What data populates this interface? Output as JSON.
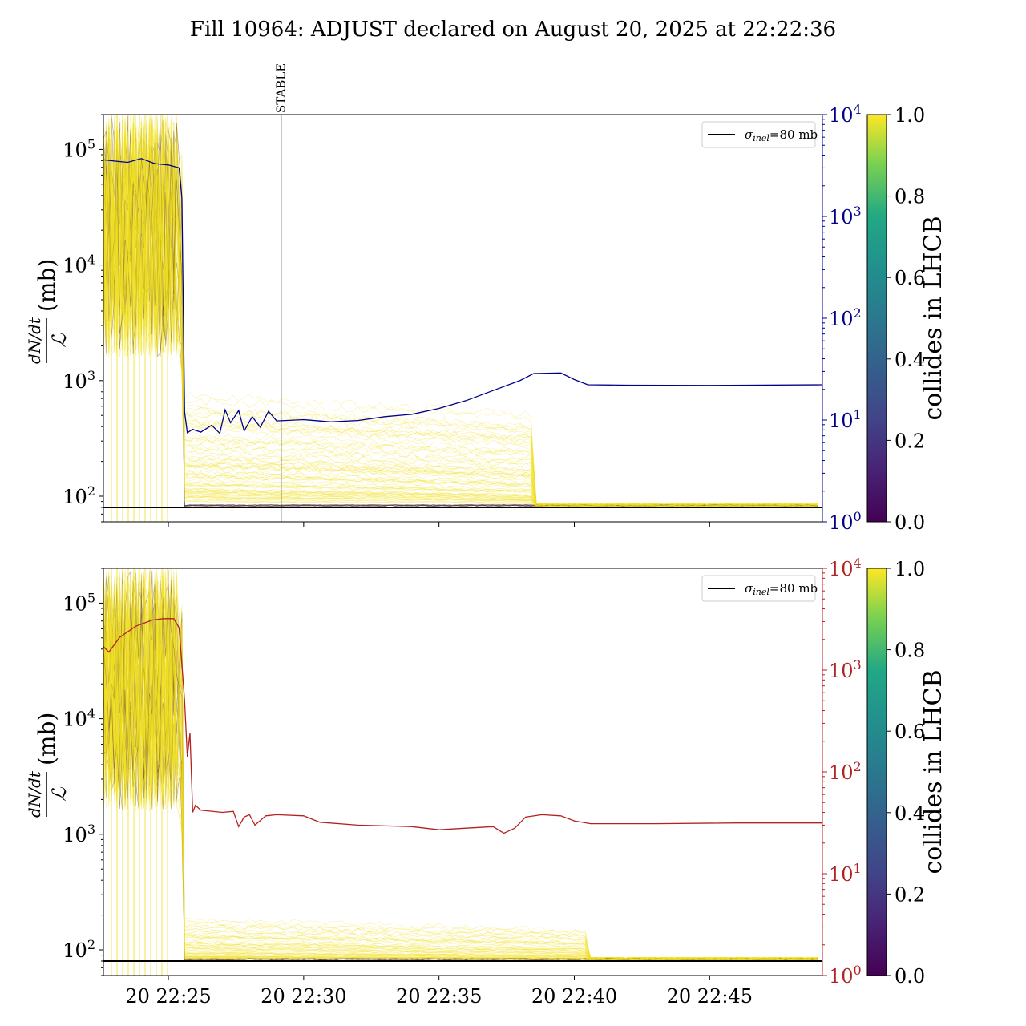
{
  "title": "Fill 10964: ADJUST declared on August 20, 2025 at 22:22:36",
  "chart_data": [
    {
      "type": "line",
      "panel": "top",
      "ylabel": {
        "numerator": "dN/dt",
        "denominator": "ℒ",
        "unit": "(mb)"
      },
      "yscale": "log",
      "ylim": [
        60,
        200000
      ],
      "left_ticks": [
        {
          "value": 100,
          "base": "10",
          "exp": "2"
        },
        {
          "value": 1000,
          "base": "10",
          "exp": "3"
        },
        {
          "value": 10000,
          "base": "10",
          "exp": "4"
        },
        {
          "value": 100000,
          "base": "10",
          "exp": "5"
        }
      ],
      "right_axis": {
        "scale": "log",
        "ylim": [
          1,
          10000
        ],
        "color": "#00008b",
        "ticks": [
          {
            "value": 1,
            "base": "10",
            "exp": "0"
          },
          {
            "value": 10,
            "base": "10",
            "exp": "1"
          },
          {
            "value": 100,
            "base": "10",
            "exp": "2"
          },
          {
            "value": 1000,
            "base": "10",
            "exp": "3"
          },
          {
            "value": 10000,
            "base": "10",
            "exp": "4"
          }
        ]
      },
      "xlim": [
        "2025-08-20 22:22:36",
        "2025-08-20 22:49:10"
      ],
      "x_ticks": [
        {
          "value": "2025-08-20 22:25:00",
          "label": ""
        },
        {
          "value": "2025-08-20 22:30:00",
          "label": ""
        },
        {
          "value": "2025-08-20 22:35:00",
          "label": ""
        },
        {
          "value": "2025-08-20 22:40:00",
          "label": ""
        },
        {
          "value": "2025-08-20 22:45:00",
          "label": ""
        }
      ],
      "legend": {
        "entries": [
          {
            "label_symbol": "σ",
            "label_sub": "inel",
            "label_rest": "=80 mb",
            "color": "#000000"
          }
        ],
        "position": "top-right"
      },
      "reference_line": {
        "y": 80,
        "color": "#000000"
      },
      "stable_marker": {
        "x": "2025-08-20 22:29:10",
        "label": "STABLE"
      },
      "colorbar": {
        "label": "collides in LHCB",
        "min": 0.0,
        "max": 1.0,
        "ticks": [
          "0.0",
          "0.2",
          "0.4",
          "0.6",
          "0.8",
          "1.0"
        ],
        "colormap": "viridis"
      },
      "bunch_band": {
        "color": "#f0e020",
        "dark_color": "#5a3a40"
      },
      "series": [
        {
          "axis": "right",
          "color": "#00008b",
          "points": [
            [
              "2025-08-20 22:22:36",
              3600
            ],
            [
              "2025-08-20 22:23:00",
              3500
            ],
            [
              "2025-08-20 22:23:30",
              3400
            ],
            [
              "2025-08-20 22:24:00",
              3700
            ],
            [
              "2025-08-20 22:24:30",
              3300
            ],
            [
              "2025-08-20 22:25:00",
              3200
            ],
            [
              "2025-08-20 22:25:24",
              3000
            ],
            [
              "2025-08-20 22:25:30",
              1500
            ],
            [
              "2025-08-20 22:25:36",
              12
            ],
            [
              "2025-08-20 22:25:42",
              7.5
            ],
            [
              "2025-08-20 22:25:54",
              8.1
            ],
            [
              "2025-08-20 22:26:12",
              7.6
            ],
            [
              "2025-08-20 22:26:36",
              8.9
            ],
            [
              "2025-08-20 22:26:54",
              7.4
            ],
            [
              "2025-08-20 22:27:06",
              12.6
            ],
            [
              "2025-08-20 22:27:18",
              9.4
            ],
            [
              "2025-08-20 22:27:36",
              12.4
            ],
            [
              "2025-08-20 22:27:48",
              7.8
            ],
            [
              "2025-08-20 22:28:06",
              10.8
            ],
            [
              "2025-08-20 22:28:24",
              8.5
            ],
            [
              "2025-08-20 22:28:42",
              12.2
            ],
            [
              "2025-08-20 22:29:00",
              9.8
            ],
            [
              "2025-08-20 22:30:00",
              10.1
            ],
            [
              "2025-08-20 22:31:00",
              9.6
            ],
            [
              "2025-08-20 22:32:00",
              9.9
            ],
            [
              "2025-08-20 22:33:00",
              10.8
            ],
            [
              "2025-08-20 22:34:00",
              11.4
            ],
            [
              "2025-08-20 22:35:00",
              13.0
            ],
            [
              "2025-08-20 22:36:00",
              15.5
            ],
            [
              "2025-08-20 22:37:00",
              19.5
            ],
            [
              "2025-08-20 22:38:00",
              24.5
            ],
            [
              "2025-08-20 22:38:30",
              28.6
            ],
            [
              "2025-08-20 22:39:30",
              29.0
            ],
            [
              "2025-08-20 22:40:00",
              25.0
            ],
            [
              "2025-08-20 22:40:30",
              22.2
            ],
            [
              "2025-08-20 22:42:00",
              22.0
            ],
            [
              "2025-08-20 22:45:00",
              21.9
            ],
            [
              "2025-08-20 22:49:10",
              22.2
            ]
          ]
        }
      ]
    },
    {
      "type": "line",
      "panel": "bottom",
      "ylabel": {
        "numerator": "dN/dt",
        "denominator": "ℒ",
        "unit": "(mb)"
      },
      "yscale": "log",
      "ylim": [
        60,
        200000
      ],
      "left_ticks": [
        {
          "value": 100,
          "base": "10",
          "exp": "2"
        },
        {
          "value": 1000,
          "base": "10",
          "exp": "3"
        },
        {
          "value": 10000,
          "base": "10",
          "exp": "4"
        },
        {
          "value": 100000,
          "base": "10",
          "exp": "5"
        }
      ],
      "right_axis": {
        "scale": "log",
        "ylim": [
          1,
          10000
        ],
        "color": "#b22222",
        "ticks": [
          {
            "value": 1,
            "base": "10",
            "exp": "0"
          },
          {
            "value": 10,
            "base": "10",
            "exp": "1"
          },
          {
            "value": 100,
            "base": "10",
            "exp": "2"
          },
          {
            "value": 1000,
            "base": "10",
            "exp": "3"
          },
          {
            "value": 10000,
            "base": "10",
            "exp": "4"
          }
        ]
      },
      "xlim": [
        "2025-08-20 22:22:36",
        "2025-08-20 22:49:10"
      ],
      "x_ticks": [
        {
          "value": "2025-08-20 22:25:00",
          "label": "20 22:25"
        },
        {
          "value": "2025-08-20 22:30:00",
          "label": "20 22:30"
        },
        {
          "value": "2025-08-20 22:35:00",
          "label": "20 22:35"
        },
        {
          "value": "2025-08-20 22:40:00",
          "label": "20 22:40"
        },
        {
          "value": "2025-08-20 22:45:00",
          "label": "20 22:45"
        }
      ],
      "legend": {
        "entries": [
          {
            "label_symbol": "σ",
            "label_sub": "inel",
            "label_rest": "=80 mb",
            "color": "#000000"
          }
        ],
        "position": "top-right"
      },
      "reference_line": {
        "y": 80,
        "color": "#000000"
      },
      "colorbar": {
        "label": "collides in LHCB",
        "min": 0.0,
        "max": 1.0,
        "ticks": [
          "0.0",
          "0.2",
          "0.4",
          "0.6",
          "0.8",
          "1.0"
        ],
        "colormap": "viridis"
      },
      "bunch_band": {
        "color": "#f0e020",
        "dark_color": "#5a3a40"
      },
      "series": [
        {
          "axis": "right",
          "color": "#b22222",
          "points": [
            [
              "2025-08-20 22:22:36",
              1700
            ],
            [
              "2025-08-20 22:22:48",
              1500
            ],
            [
              "2025-08-20 22:23:12",
              2100
            ],
            [
              "2025-08-20 22:23:48",
              2700
            ],
            [
              "2025-08-20 22:24:24",
              3100
            ],
            [
              "2025-08-20 22:24:48",
              3200
            ],
            [
              "2025-08-20 22:25:12",
              3200
            ],
            [
              "2025-08-20 22:25:24",
              2600
            ],
            [
              "2025-08-20 22:25:36",
              500
            ],
            [
              "2025-08-20 22:25:42",
              140
            ],
            [
              "2025-08-20 22:25:48",
              240
            ],
            [
              "2025-08-20 22:25:54",
              40
            ],
            [
              "2025-08-20 22:26:00",
              47
            ],
            [
              "2025-08-20 22:26:12",
              42
            ],
            [
              "2025-08-20 22:27:00",
              40
            ],
            [
              "2025-08-20 22:27:24",
              41
            ],
            [
              "2025-08-20 22:27:36",
              29
            ],
            [
              "2025-08-20 22:27:48",
              36
            ],
            [
              "2025-08-20 22:28:00",
              38
            ],
            [
              "2025-08-20 22:28:12",
              30
            ],
            [
              "2025-08-20 22:28:36",
              37
            ],
            [
              "2025-08-20 22:29:00",
              38
            ],
            [
              "2025-08-20 22:30:00",
              37
            ],
            [
              "2025-08-20 22:30:36",
              32
            ],
            [
              "2025-08-20 22:32:00",
              30
            ],
            [
              "2025-08-20 22:34:00",
              29
            ],
            [
              "2025-08-20 22:35:00",
              27
            ],
            [
              "2025-08-20 22:36:00",
              28
            ],
            [
              "2025-08-20 22:37:00",
              29
            ],
            [
              "2025-08-20 22:37:24",
              25
            ],
            [
              "2025-08-20 22:37:48",
              28
            ],
            [
              "2025-08-20 22:38:12",
              36
            ],
            [
              "2025-08-20 22:38:48",
              38
            ],
            [
              "2025-08-20 22:39:30",
              37
            ],
            [
              "2025-08-20 22:40:00",
              33
            ],
            [
              "2025-08-20 22:40:36",
              31
            ],
            [
              "2025-08-20 22:43:00",
              31
            ],
            [
              "2025-08-20 22:46:00",
              31.5
            ],
            [
              "2025-08-20 22:49:10",
              31.5
            ]
          ]
        }
      ]
    }
  ]
}
